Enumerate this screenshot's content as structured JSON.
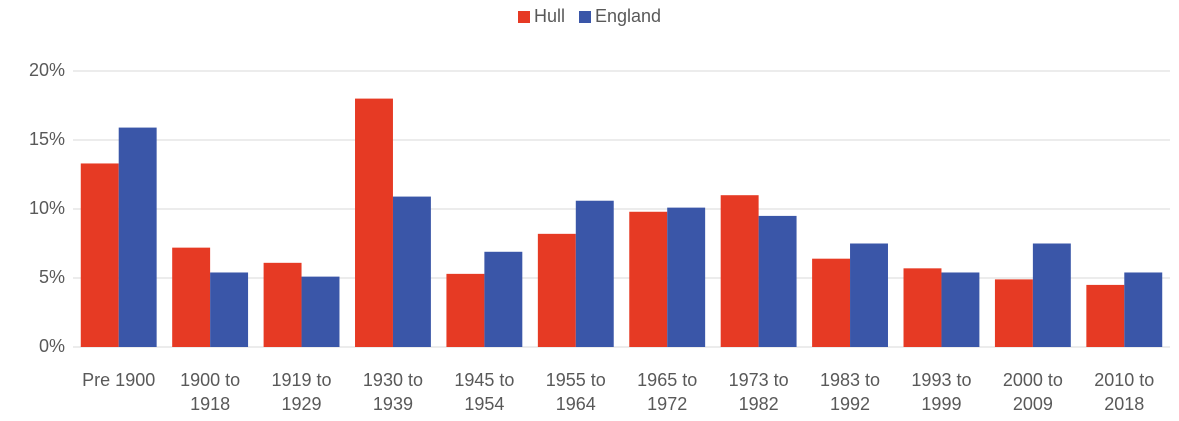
{
  "chart_data": {
    "type": "bar",
    "categories": [
      "Pre 1900",
      "1900 to 1918",
      "1919 to 1929",
      "1930 to 1939",
      "1945 to 1954",
      "1955 to 1964",
      "1965 to 1972",
      "1973 to 1982",
      "1983 to 1992",
      "1993 to 1999",
      "2000 to 2009",
      "2010 to 2018"
    ],
    "series": [
      {
        "name": "Hull",
        "color": "#e63a24",
        "values": [
          13.3,
          7.2,
          6.1,
          18.0,
          5.3,
          8.2,
          9.8,
          11.0,
          6.4,
          5.7,
          4.9,
          4.5
        ]
      },
      {
        "name": "England",
        "color": "#3a56a8",
        "values": [
          15.9,
          5.4,
          5.1,
          10.9,
          6.9,
          10.6,
          10.1,
          9.5,
          7.5,
          5.4,
          7.5,
          5.4
        ]
      }
    ],
    "ylim": [
      0,
      20
    ],
    "yticks": [
      {
        "value": 0,
        "label": "0%"
      },
      {
        "value": 5,
        "label": "5%"
      },
      {
        "value": 10,
        "label": "10%"
      },
      {
        "value": 15,
        "label": "15%"
      },
      {
        "value": 20,
        "label": "20%"
      }
    ],
    "grid": true,
    "legend": "top"
  }
}
